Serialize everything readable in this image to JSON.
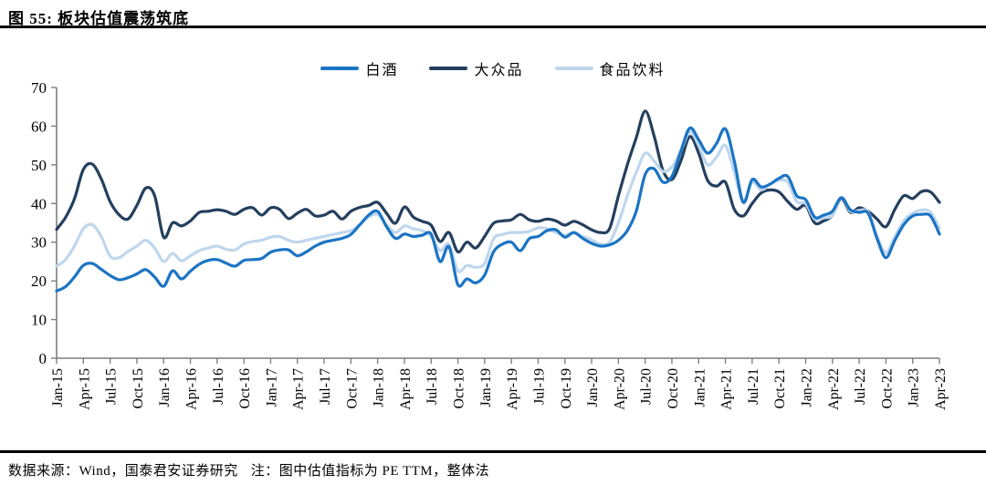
{
  "figure": {
    "title": "图 55: 板块估值震荡筑底"
  },
  "footer": {
    "source": "数据来源：Wind，国泰君安证券研究",
    "note": "注：图中估值指标为 PE TTM，整体法"
  },
  "chart_data": {
    "type": "line",
    "title": "",
    "xlabel": "",
    "ylabel": "",
    "ylim": [
      0,
      70
    ],
    "yticks": [
      0,
      10,
      20,
      30,
      40,
      50,
      60,
      70
    ],
    "grid": false,
    "legend_position": "top-center",
    "axis_color": "#7F7F7F",
    "x_range": {
      "start": "2015-01",
      "end": "2023-04",
      "freq": "monthly",
      "points": 100
    },
    "xtick_labels": [
      "Jan-15",
      "Apr-15",
      "Jul-15",
      "Oct-15",
      "Jan-16",
      "Apr-16",
      "Jul-16",
      "Oct-16",
      "Jan-17",
      "Apr-17",
      "Jul-17",
      "Oct-17",
      "Jan-18",
      "Apr-18",
      "Jul-18",
      "Oct-18",
      "Jan-19",
      "Apr-19",
      "Jul-19",
      "Oct-19",
      "Jan-20",
      "Apr-20",
      "Jul-20",
      "Oct-20",
      "Jan-21",
      "Apr-21",
      "Jul-21",
      "Oct-21",
      "Jan-22",
      "Apr-22",
      "Jul-22",
      "Oct-22",
      "Jan-23",
      "Apr-23"
    ],
    "series": [
      {
        "key": "baijiu",
        "name": "白酒",
        "color": "#1B74C4",
        "values": [
          17.4,
          18.5,
          21.0,
          24.0,
          24.5,
          23.0,
          21.4,
          20.3,
          20.8,
          21.8,
          22.9,
          21.0,
          18.6,
          22.6,
          20.5,
          22.5,
          24.3,
          25.3,
          25.5,
          24.6,
          23.8,
          25.3,
          25.5,
          25.8,
          27.4,
          28.0,
          28.0,
          26.5,
          27.5,
          29.0,
          30.0,
          30.5,
          31.0,
          32.0,
          34.5,
          37.0,
          38.0,
          34.0,
          31.0,
          32.1,
          31.5,
          31.8,
          32.1,
          25.0,
          28.8,
          19.0,
          20.5,
          19.5,
          21.5,
          27.5,
          29.5,
          30.0,
          27.8,
          30.9,
          31.5,
          33.0,
          33.2,
          31.3,
          32.5,
          31.0,
          29.7,
          29.0,
          29.3,
          30.5,
          33.0,
          38.0,
          47.5,
          49.0,
          45.5,
          47.0,
          53.5,
          59.5,
          56.5,
          53.0,
          55.5,
          59.3,
          51.0,
          40.3,
          46.2,
          44.3,
          45.0,
          46.5,
          47.0,
          42.0,
          41.0,
          36.5,
          37.0,
          38.0,
          41.5,
          38.4,
          37.7,
          37.5,
          31.0,
          26.0,
          30.5,
          34.5,
          36.8,
          37.2,
          36.8,
          32.1
        ]
      },
      {
        "key": "dazhongpin",
        "name": "大众品",
        "color": "#243F5E",
        "values": [
          33.3,
          36.4,
          41.2,
          48.8,
          50.2,
          46.4,
          40.5,
          37.1,
          36.0,
          39.5,
          44.0,
          42.0,
          31.3,
          35.0,
          34.2,
          35.5,
          37.7,
          38.0,
          38.4,
          38.0,
          37.2,
          38.5,
          38.9,
          37.0,
          38.9,
          38.5,
          36.1,
          37.5,
          38.5,
          36.8,
          37.0,
          38.0,
          36.0,
          38.0,
          39.0,
          39.5,
          40.3,
          37.5,
          34.9,
          39.1,
          36.5,
          35.4,
          34.4,
          30.2,
          32.5,
          27.5,
          30.0,
          28.5,
          31.5,
          34.9,
          35.5,
          35.8,
          37.2,
          35.8,
          35.4,
          36.0,
          35.5,
          34.4,
          35.4,
          34.5,
          33.2,
          32.5,
          33.5,
          42.0,
          50.0,
          57.0,
          63.9,
          57.5,
          48.5,
          46.2,
          51.0,
          57.3,
          53.0,
          46.0,
          44.5,
          45.5,
          38.5,
          36.8,
          40.0,
          42.7,
          43.5,
          43.0,
          40.5,
          38.5,
          39.5,
          35.0,
          35.5,
          37.0,
          41.3,
          37.7,
          38.9,
          38.0,
          36.0,
          34.0,
          38.5,
          42.0,
          41.3,
          43.1,
          43.0,
          40.3
        ]
      },
      {
        "key": "shipinyinliao",
        "name": "食品饮料",
        "color": "#BFD7ED",
        "values": [
          23.8,
          25.5,
          29.0,
          33.5,
          34.5,
          31.5,
          26.4,
          26.0,
          27.6,
          29.0,
          30.5,
          28.5,
          25.0,
          27.1,
          25.2,
          26.5,
          27.8,
          28.5,
          29.0,
          28.2,
          28.0,
          29.5,
          30.2,
          30.5,
          31.3,
          31.5,
          30.5,
          30.0,
          30.5,
          31.0,
          31.5,
          32.0,
          32.5,
          33.0,
          34.5,
          36.5,
          37.2,
          34.5,
          32.5,
          34.2,
          33.5,
          33.0,
          31.5,
          27.8,
          29.5,
          22.6,
          24.0,
          23.5,
          24.5,
          30.9,
          32.0,
          32.5,
          32.5,
          32.8,
          33.7,
          33.5,
          32.5,
          31.8,
          32.5,
          31.5,
          30.6,
          29.5,
          30.0,
          35.0,
          42.0,
          48.0,
          53.0,
          51.0,
          48.3,
          49.5,
          53.5,
          58.5,
          55.0,
          50.0,
          52.0,
          55.0,
          48.0,
          40.5,
          45.5,
          43.5,
          45.0,
          46.0,
          45.5,
          40.5,
          40.0,
          36.0,
          36.3,
          37.0,
          41.5,
          38.0,
          38.2,
          37.8,
          31.5,
          27.3,
          31.5,
          35.5,
          37.5,
          38.3,
          37.8,
          33.7
        ]
      }
    ]
  }
}
